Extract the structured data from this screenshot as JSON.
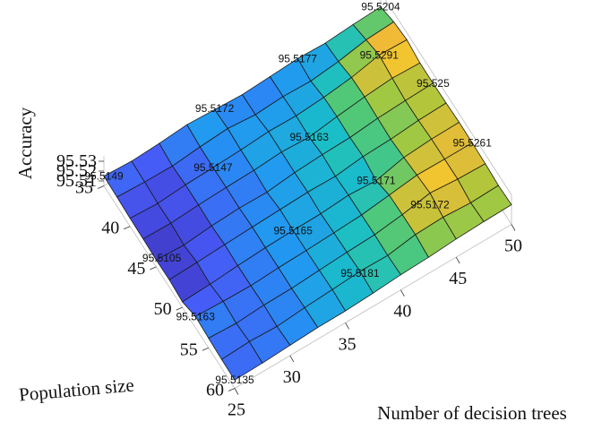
{
  "chart_data": {
    "type": "surface",
    "title": "",
    "xlabel": "Number of decision trees",
    "ylabel": "Population size",
    "zlabel": "Accuracy",
    "x_ticks": [
      "25",
      "30",
      "35",
      "40",
      "45",
      "50"
    ],
    "y_ticks": [
      "35",
      "40",
      "45",
      "50",
      "55",
      "60"
    ],
    "z_ticks": [
      "95.51",
      "95.52",
      "95.53"
    ],
    "x_range": [
      25,
      50
    ],
    "y_range": [
      35,
      60
    ],
    "z_range": [
      95.505,
      95.535
    ],
    "grid": true,
    "colormap": "parula",
    "z_grid": [
      [
        95.5149,
        95.5135,
        95.5148,
        95.5172,
        95.5158,
        95.5145,
        95.516,
        95.5177,
        95.5168,
        95.519,
        95.5204
      ],
      [
        95.5142,
        95.5128,
        95.5124,
        95.5152,
        95.5172,
        95.5146,
        95.5164,
        95.5155,
        95.5186,
        95.524,
        95.5256
      ],
      [
        95.5132,
        95.5116,
        95.5138,
        95.5147,
        95.516,
        95.518,
        95.5174,
        95.5195,
        95.523,
        95.5291,
        95.528
      ],
      [
        95.5128,
        95.5122,
        95.514,
        95.5151,
        95.5158,
        95.5178,
        95.5163,
        95.5205,
        95.5238,
        95.5262,
        95.525
      ],
      [
        95.512,
        95.5105,
        95.5133,
        95.5147,
        95.5142,
        95.5175,
        95.519,
        95.5198,
        95.5226,
        95.524,
        95.525
      ],
      [
        95.5125,
        95.5135,
        95.5148,
        95.516,
        95.5171,
        95.5182,
        95.5176,
        95.521,
        95.522,
        95.5245,
        95.5255
      ],
      [
        95.5106,
        95.5118,
        95.514,
        95.5156,
        95.5165,
        95.5168,
        95.519,
        95.5171,
        95.524,
        95.526,
        95.5265
      ],
      [
        95.5163,
        95.515,
        95.5143,
        95.5158,
        95.5166,
        95.518,
        95.5195,
        95.523,
        95.5266,
        95.5262,
        95.5261
      ],
      [
        95.5148,
        95.5133,
        95.5151,
        95.5155,
        95.5172,
        95.5188,
        95.52,
        95.5236,
        95.529,
        95.5265,
        95.5255
      ],
      [
        95.5138,
        95.5152,
        95.514,
        95.5165,
        95.5181,
        95.52,
        95.5195,
        95.524,
        95.525,
        95.523,
        95.524
      ],
      [
        95.5135,
        95.514,
        95.5155,
        95.5168,
        95.517,
        95.5185,
        95.5205,
        95.5215,
        95.5235,
        95.5245,
        95.525
      ]
    ],
    "annotations": [
      {
        "label": "95.5204",
        "x": 50,
        "y": 35,
        "z": 95.5204
      },
      {
        "label": "95.5177",
        "x": 42.5,
        "y": 35,
        "z": 95.5177
      },
      {
        "label": "95.5172",
        "x": 35,
        "y": 35,
        "z": 95.5172
      },
      {
        "label": "95.5149",
        "x": 25,
        "y": 35,
        "z": 95.5149
      },
      {
        "label": "95.5291",
        "x": 47.5,
        "y": 40,
        "z": 95.5291
      },
      {
        "label": "95.5163",
        "x": 40,
        "y": 42.5,
        "z": 95.5163
      },
      {
        "label": "95.5147",
        "x": 32.5,
        "y": 40,
        "z": 95.5147
      },
      {
        "label": "95.525",
        "x": 50,
        "y": 45,
        "z": 95.525
      },
      {
        "label": "95.5105",
        "x": 25.5,
        "y": 45,
        "z": 95.5105
      },
      {
        "label": "95.5171",
        "x": 42.5,
        "y": 50,
        "z": 95.5171
      },
      {
        "label": "95.5165",
        "x": 35,
        "y": 50,
        "z": 95.5165
      },
      {
        "label": "95.5261",
        "x": 50,
        "y": 52.5,
        "z": 95.5261
      },
      {
        "label": "95.5163",
        "x": 25,
        "y": 52.5,
        "z": 95.5163
      },
      {
        "label": "95.5172",
        "x": 45,
        "y": 55,
        "z": 95.5172
      },
      {
        "label": "95.5181",
        "x": 37.5,
        "y": 57.5,
        "z": 95.5181
      },
      {
        "label": "95.5135",
        "x": 25,
        "y": 60,
        "z": 95.5135
      }
    ]
  }
}
